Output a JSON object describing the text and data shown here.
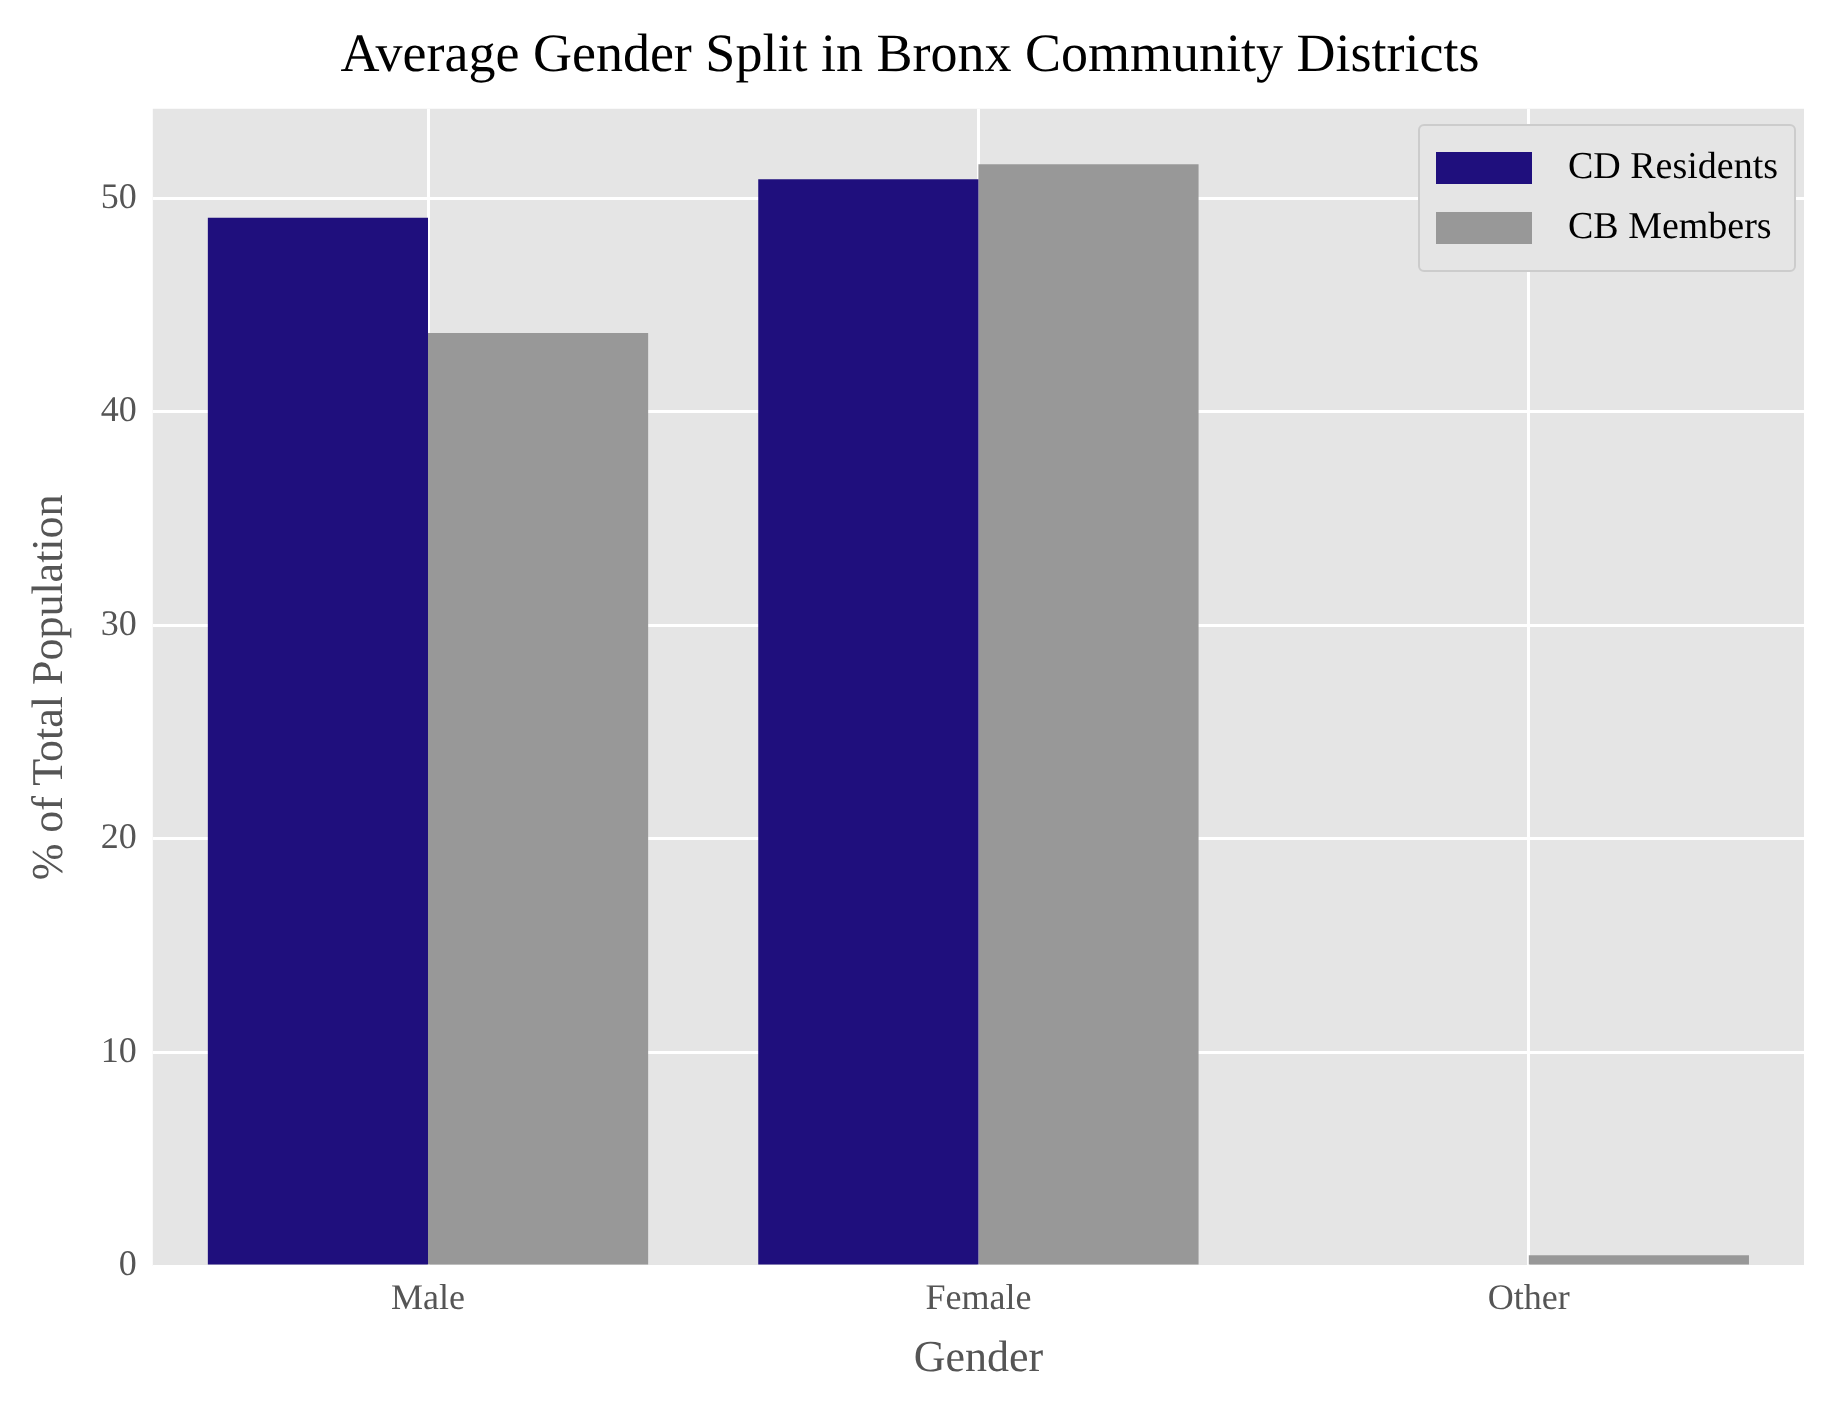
{
  "chart_data": {
    "type": "bar",
    "title": "Average Gender Split in Bronx Community Districts",
    "xlabel": "Gender",
    "ylabel": "% of Total Population",
    "categories": [
      "Male",
      "Female",
      "Other"
    ],
    "series": [
      {
        "name": "CD Residents",
        "color": "#1f0f7d",
        "values": [
          49.1,
          50.9,
          0
        ]
      },
      {
        "name": "CB Members",
        "color": "#989898",
        "values": [
          43.7,
          51.6,
          0.5
        ]
      }
    ],
    "ylim": [
      0,
      54.2
    ],
    "yticks": [
      0,
      10,
      20,
      30,
      40,
      50
    ],
    "grid": true,
    "legend": "top right"
  }
}
